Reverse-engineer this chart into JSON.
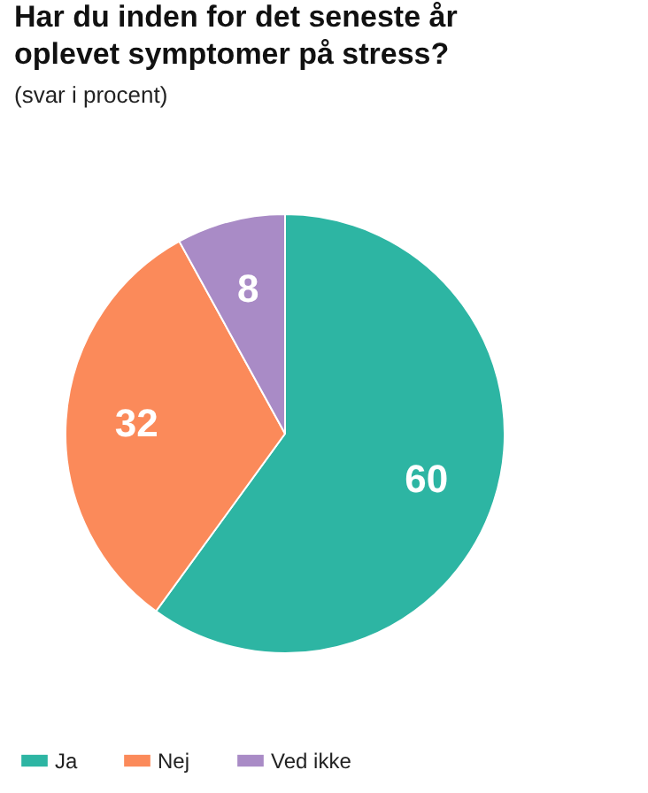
{
  "chart_data": {
    "type": "pie",
    "title": "Har du inden for det seneste år oplevet symptomer på stress?",
    "subtitle": "(svar i procent)",
    "categories": [
      "Ja",
      "Nej",
      "Ved ikke"
    ],
    "values": [
      60,
      32,
      8
    ],
    "colors": [
      "#2db5a3",
      "#fb8a5a",
      "#a98bc6"
    ],
    "data_labels": true,
    "legend": "bottom"
  }
}
